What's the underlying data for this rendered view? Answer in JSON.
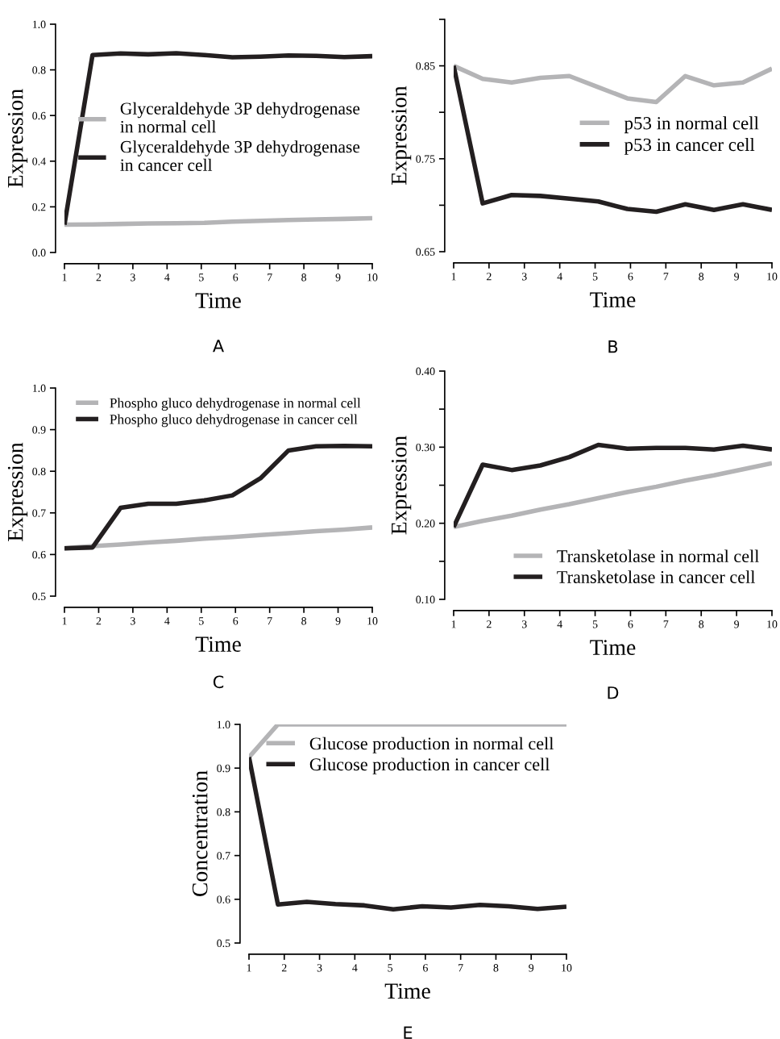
{
  "chart_data": [
    {
      "type": "line",
      "xlabel": "Time",
      "ylabel": "Expression",
      "annotations": [
        "A"
      ],
      "legend": "right",
      "line_style": "solid",
      "x": [
        1,
        1.82,
        2.64,
        3.45,
        4.27,
        5.09,
        5.91,
        6.73,
        7.55,
        8.36,
        9.18,
        10
      ],
      "xlim": [
        1,
        10
      ],
      "xticks": [
        1,
        2,
        3,
        4,
        5,
        6,
        7,
        8,
        9,
        10
      ],
      "ylim": [
        0,
        1
      ],
      "yticks": [
        {
          "value": 0,
          "label": "0.0"
        },
        0.2,
        0.4,
        0.6,
        0.8,
        {
          "value": 1,
          "label": "1.0"
        }
      ],
      "series": [
        {
          "name": "Glyceraldehyde 3P dehydrogenase\nin normal cell",
          "color": "#b4b4b6",
          "values": [
            0.122,
            0.123,
            0.125,
            0.127,
            0.128,
            0.13,
            0.135,
            0.139,
            0.142,
            0.145,
            0.147,
            0.15
          ]
        },
        {
          "name": "Glyceraldehyde 3P dehydrogenase\nin cancer cell",
          "color": "#231f20",
          "values": [
            0.122,
            0.865,
            0.872,
            0.868,
            0.873,
            0.865,
            0.855,
            0.858,
            0.863,
            0.861,
            0.856,
            0.86
          ]
        }
      ]
    },
    {
      "type": "line",
      "xlabel": "Time",
      "ylabel": "Expression",
      "annotations": [
        "B"
      ],
      "legend": "right",
      "line_style": "solid",
      "x": [
        1,
        1.82,
        2.64,
        3.45,
        4.27,
        5.09,
        5.91,
        6.73,
        7.55,
        8.36,
        9.18,
        10
      ],
      "xlim": [
        1,
        10
      ],
      "xticks": [
        1,
        2,
        3,
        4,
        5,
        6,
        7,
        8,
        9,
        10
      ],
      "ylim": [
        0.65,
        0.9
      ],
      "yticks": [
        0.65,
        {
          "value": 0.7,
          "label": null
        },
        0.75,
        {
          "value": 0.8,
          "label": null
        },
        0.85,
        {
          "value": 0.9,
          "label": null
        }
      ],
      "series": [
        {
          "name": "p53 in normal cell",
          "color": "#b4b4b6",
          "values": [
            0.85,
            0.836,
            0.832,
            0.837,
            0.839,
            0.827,
            0.815,
            0.811,
            0.839,
            0.829,
            0.832,
            0.847
          ]
        },
        {
          "name": "p53 in cancer cell",
          "color": "#231f20",
          "values": [
            0.85,
            0.702,
            0.711,
            0.71,
            0.707,
            0.704,
            0.696,
            0.693,
            0.701,
            0.695,
            0.701,
            0.695
          ]
        }
      ]
    },
    {
      "type": "line",
      "xlabel": "Time",
      "ylabel": "Expression",
      "annotations": [
        "C"
      ],
      "legend": "top",
      "line_style": "solid",
      "x": [
        1,
        1.82,
        2.64,
        3.45,
        4.27,
        5.09,
        5.91,
        6.73,
        7.55,
        8.36,
        9.18,
        10
      ],
      "xlim": [
        1,
        10
      ],
      "xticks": [
        1,
        2,
        3,
        4,
        5,
        6,
        7,
        8,
        9,
        10
      ],
      "ylim": [
        0.5,
        1
      ],
      "yticks": [
        0.5,
        0.6,
        0.7,
        0.8,
        0.9,
        {
          "value": 1,
          "label": "1.0"
        }
      ],
      "series": [
        {
          "name": "Phospho gluco dehydrogenase in normal cell",
          "color": "#b4b4b6",
          "values": [
            0.615,
            0.62,
            0.624,
            0.629,
            0.633,
            0.638,
            0.642,
            0.647,
            0.651,
            0.656,
            0.66,
            0.665
          ]
        },
        {
          "name": "Phospho gluco dehydrogenase in cancer cell",
          "color": "#231f20",
          "values": [
            0.615,
            0.617,
            0.712,
            0.722,
            0.722,
            0.73,
            0.742,
            0.783,
            0.85,
            0.86,
            0.861,
            0.86
          ]
        }
      ]
    },
    {
      "type": "line",
      "xlabel": "Time",
      "ylabel": "Expression",
      "annotations": [
        "D"
      ],
      "legend": "bottom right",
      "line_style": "solid",
      "x": [
        1,
        1.82,
        2.64,
        3.45,
        4.27,
        5.09,
        5.91,
        6.73,
        7.55,
        8.36,
        9.18,
        10
      ],
      "xlim": [
        1,
        10
      ],
      "xticks": [
        1,
        2,
        3,
        4,
        5,
        6,
        7,
        8,
        9,
        10
      ],
      "ylim": [
        0.1,
        0.4
      ],
      "yticks": [
        {
          "value": 0.1,
          "label": "0.10"
        },
        {
          "value": 0.15,
          "label": null
        },
        {
          "value": 0.2,
          "label": "0.20"
        },
        {
          "value": 0.25,
          "label": null
        },
        {
          "value": 0.3,
          "label": "0.30"
        },
        {
          "value": 0.35,
          "label": null
        },
        {
          "value": 0.4,
          "label": "0.40"
        }
      ],
      "series": [
        {
          "name": "Transketolase in normal cell",
          "color": "#b4b4b6",
          "values": [
            0.195,
            0.203,
            0.21,
            0.218,
            0.225,
            0.233,
            0.241,
            0.248,
            0.256,
            0.263,
            0.271,
            0.279
          ]
        },
        {
          "name": "Transketolase in cancer cell",
          "color": "#231f20",
          "values": [
            0.195,
            0.277,
            0.27,
            0.276,
            0.287,
            0.303,
            0.298,
            0.299,
            0.299,
            0.297,
            0.302,
            0.297
          ]
        }
      ]
    },
    {
      "type": "line",
      "xlabel": "Time",
      "ylabel": "Concentration",
      "annotations": [
        "E"
      ],
      "legend": "top right",
      "line_style": "solid",
      "x": [
        1,
        1.82,
        2.64,
        3.45,
        4.27,
        5.09,
        5.91,
        6.73,
        7.55,
        8.36,
        9.18,
        10
      ],
      "xlim": [
        1,
        10
      ],
      "xticks": [
        1,
        2,
        3,
        4,
        5,
        6,
        7,
        8,
        9,
        10
      ],
      "ylim": [
        0.5,
        1
      ],
      "yticks": [
        0.5,
        0.6,
        0.7,
        0.8,
        0.9,
        {
          "value": 1,
          "label": "1.0"
        }
      ],
      "series": [
        {
          "name": "Glucose production in normal cell",
          "color": "#b4b4b6",
          "values": [
            0.925,
            1,
            1,
            1,
            1,
            1,
            1,
            1,
            1,
            1,
            1,
            1
          ]
        },
        {
          "name": "Glucose production in cancer cell",
          "color": "#231f20",
          "values": [
            0.925,
            0.588,
            0.594,
            0.589,
            0.586,
            0.577,
            0.584,
            0.581,
            0.587,
            0.584,
            0.578,
            0.583
          ]
        }
      ]
    }
  ]
}
